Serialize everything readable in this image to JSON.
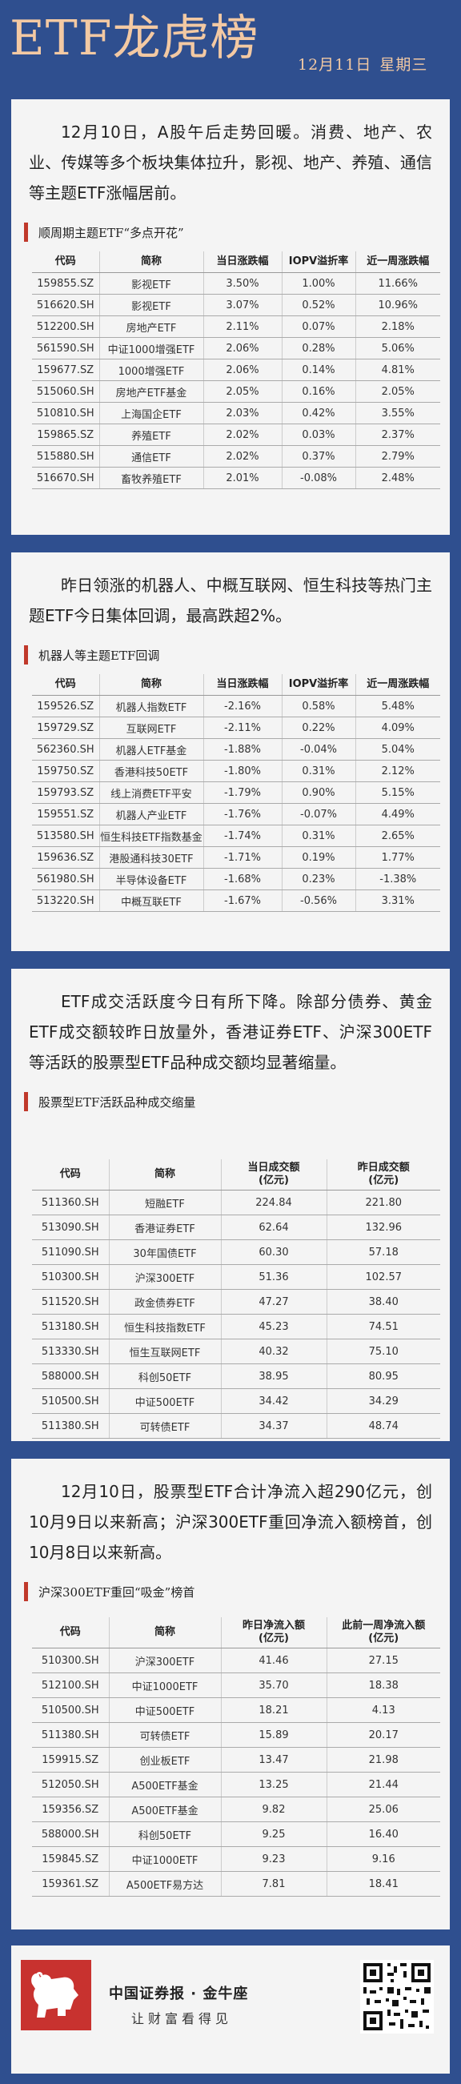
{
  "header": {
    "title": "ETF龙虎榜",
    "date": "12月11日",
    "weekday": "星期三"
  },
  "colors": {
    "background": "#2f4f8f",
    "title_accent": "#f3c9a3",
    "section_bar": "#c0392b",
    "card": "#f4f4f4"
  },
  "sections": [
    {
      "paragraph": "12月10日，A股午后走势回暖。消费、地产、农业、传媒等多个板块集体拉升，影视、地产、养殖、通信等主题ETF涨幅居前。",
      "subtitle": "顺周期主题ETF“多点开花”",
      "columns": [
        "代码",
        "简称",
        "当日涨跌幅",
        "IOPV溢折率",
        "近一周涨跌幅"
      ],
      "rows": [
        [
          "159855.SZ",
          "影视ETF",
          "3.50%",
          "1.00%",
          "11.66%"
        ],
        [
          "516620.SH",
          "影视ETF",
          "3.07%",
          "0.52%",
          "10.96%"
        ],
        [
          "512200.SH",
          "房地产ETF",
          "2.11%",
          "0.07%",
          "2.18%"
        ],
        [
          "561590.SH",
          "中证1000增强ETF",
          "2.06%",
          "0.28%",
          "5.06%"
        ],
        [
          "159677.SZ",
          "1000增强ETF",
          "2.06%",
          "0.14%",
          "4.81%"
        ],
        [
          "515060.SH",
          "房地产ETF基金",
          "2.05%",
          "0.16%",
          "2.05%"
        ],
        [
          "510810.SH",
          "上海国企ETF",
          "2.03%",
          "0.42%",
          "3.55%"
        ],
        [
          "159865.SZ",
          "养殖ETF",
          "2.02%",
          "0.03%",
          "2.37%"
        ],
        [
          "515880.SH",
          "通信ETF",
          "2.02%",
          "0.37%",
          "2.79%"
        ],
        [
          "516670.SH",
          "畜牧养殖ETF",
          "2.01%",
          "-0.08%",
          "2.48%"
        ]
      ]
    },
    {
      "paragraph": "昨日领涨的机器人、中概互联网、恒生科技等热门主题ETF今日集体回调，最高跌超2%。",
      "subtitle": "机器人等主题ETF回调",
      "columns": [
        "代码",
        "简称",
        "当日涨跌幅",
        "IOPV溢折率",
        "近一周涨跌幅"
      ],
      "rows": [
        [
          "159526.SZ",
          "机器人指数ETF",
          "-2.16%",
          "0.58%",
          "5.48%"
        ],
        [
          "159729.SZ",
          "互联网ETF",
          "-2.11%",
          "0.22%",
          "4.09%"
        ],
        [
          "562360.SH",
          "机器人ETF基金",
          "-1.88%",
          "-0.04%",
          "5.04%"
        ],
        [
          "159750.SZ",
          "香港科技50ETF",
          "-1.80%",
          "0.31%",
          "2.12%"
        ],
        [
          "159793.SZ",
          "线上消费ETF平安",
          "-1.79%",
          "0.90%",
          "5.15%"
        ],
        [
          "159551.SZ",
          "机器人产业ETF",
          "-1.76%",
          "-0.07%",
          "4.49%"
        ],
        [
          "513580.SH",
          "恒生科技ETF指数基金",
          "-1.74%",
          "0.31%",
          "2.65%"
        ],
        [
          "159636.SZ",
          "港股通科技30ETF",
          "-1.71%",
          "0.19%",
          "1.77%"
        ],
        [
          "561980.SH",
          "半导体设备ETF",
          "-1.68%",
          "0.23%",
          "-1.38%"
        ],
        [
          "513220.SH",
          "中概互联ETF",
          "-1.67%",
          "-0.56%",
          "3.31%"
        ]
      ]
    },
    {
      "paragraph": "ETF成交活跃度今日有所下降。除部分债券、黄金ETF成交额较昨日放量外，香港证券ETF、沪深300ETF等活跃的股票型ETF品种成交额均显著缩量。",
      "subtitle": "股票型ETF活跃品种成交缩量",
      "columns": [
        "代码",
        "简称",
        "当日成交额\n(亿元)",
        "昨日成交额\n(亿元)"
      ],
      "rows": [
        [
          "511360.SH",
          "短融ETF",
          "224.84",
          "221.80"
        ],
        [
          "513090.SH",
          "香港证券ETF",
          "62.64",
          "132.96"
        ],
        [
          "511090.SH",
          "30年国债ETF",
          "60.30",
          "57.18"
        ],
        [
          "510300.SH",
          "沪深300ETF",
          "51.36",
          "102.57"
        ],
        [
          "511520.SH",
          "政金债券ETF",
          "47.27",
          "38.40"
        ],
        [
          "513180.SH",
          "恒生科技指数ETF",
          "45.23",
          "74.51"
        ],
        [
          "513330.SH",
          "恒生互联网ETF",
          "40.32",
          "75.10"
        ],
        [
          "588000.SH",
          "科创50ETF",
          "38.95",
          "80.95"
        ],
        [
          "510500.SH",
          "中证500ETF",
          "34.42",
          "34.29"
        ],
        [
          "511380.SH",
          "可转债ETF",
          "34.37",
          "48.74"
        ]
      ]
    },
    {
      "paragraph": "12月10日，股票型ETF合计净流入超290亿元，创10月9日以来新高；沪深300ETF重回净流入额榜首，创10月8日以来新高。",
      "subtitle": "沪深300ETF重回“吸金”榜首",
      "columns": [
        "代码",
        "简称",
        "昨日净流入额\n(亿元)",
        "此前一周净流入额\n(亿元)"
      ],
      "rows": [
        [
          "510300.SH",
          "沪深300ETF",
          "41.46",
          "27.15"
        ],
        [
          "512100.SH",
          "中证1000ETF",
          "35.70",
          "18.38"
        ],
        [
          "510500.SH",
          "中证500ETF",
          "18.21",
          "4.13"
        ],
        [
          "511380.SH",
          "可转债ETF",
          "15.89",
          "20.17"
        ],
        [
          "159915.SZ",
          "创业板ETF",
          "13.47",
          "21.98"
        ],
        [
          "512050.SH",
          "A500ETF基金",
          "13.25",
          "21.44"
        ],
        [
          "159356.SZ",
          "A500ETF基金",
          "9.82",
          "25.06"
        ],
        [
          "588000.SH",
          "科创50ETF",
          "9.25",
          "16.40"
        ],
        [
          "159845.SZ",
          "中证1000ETF",
          "9.23",
          "9.16"
        ],
        [
          "159361.SZ",
          "A500ETF易方达",
          "7.81",
          "18.41"
        ]
      ]
    }
  ],
  "footer": {
    "brand": "中国证券报 · 金牛座",
    "slogan": "让财富看得见",
    "logo_icon": "bull-logo-icon",
    "qr_icon": "qr-code-icon"
  }
}
